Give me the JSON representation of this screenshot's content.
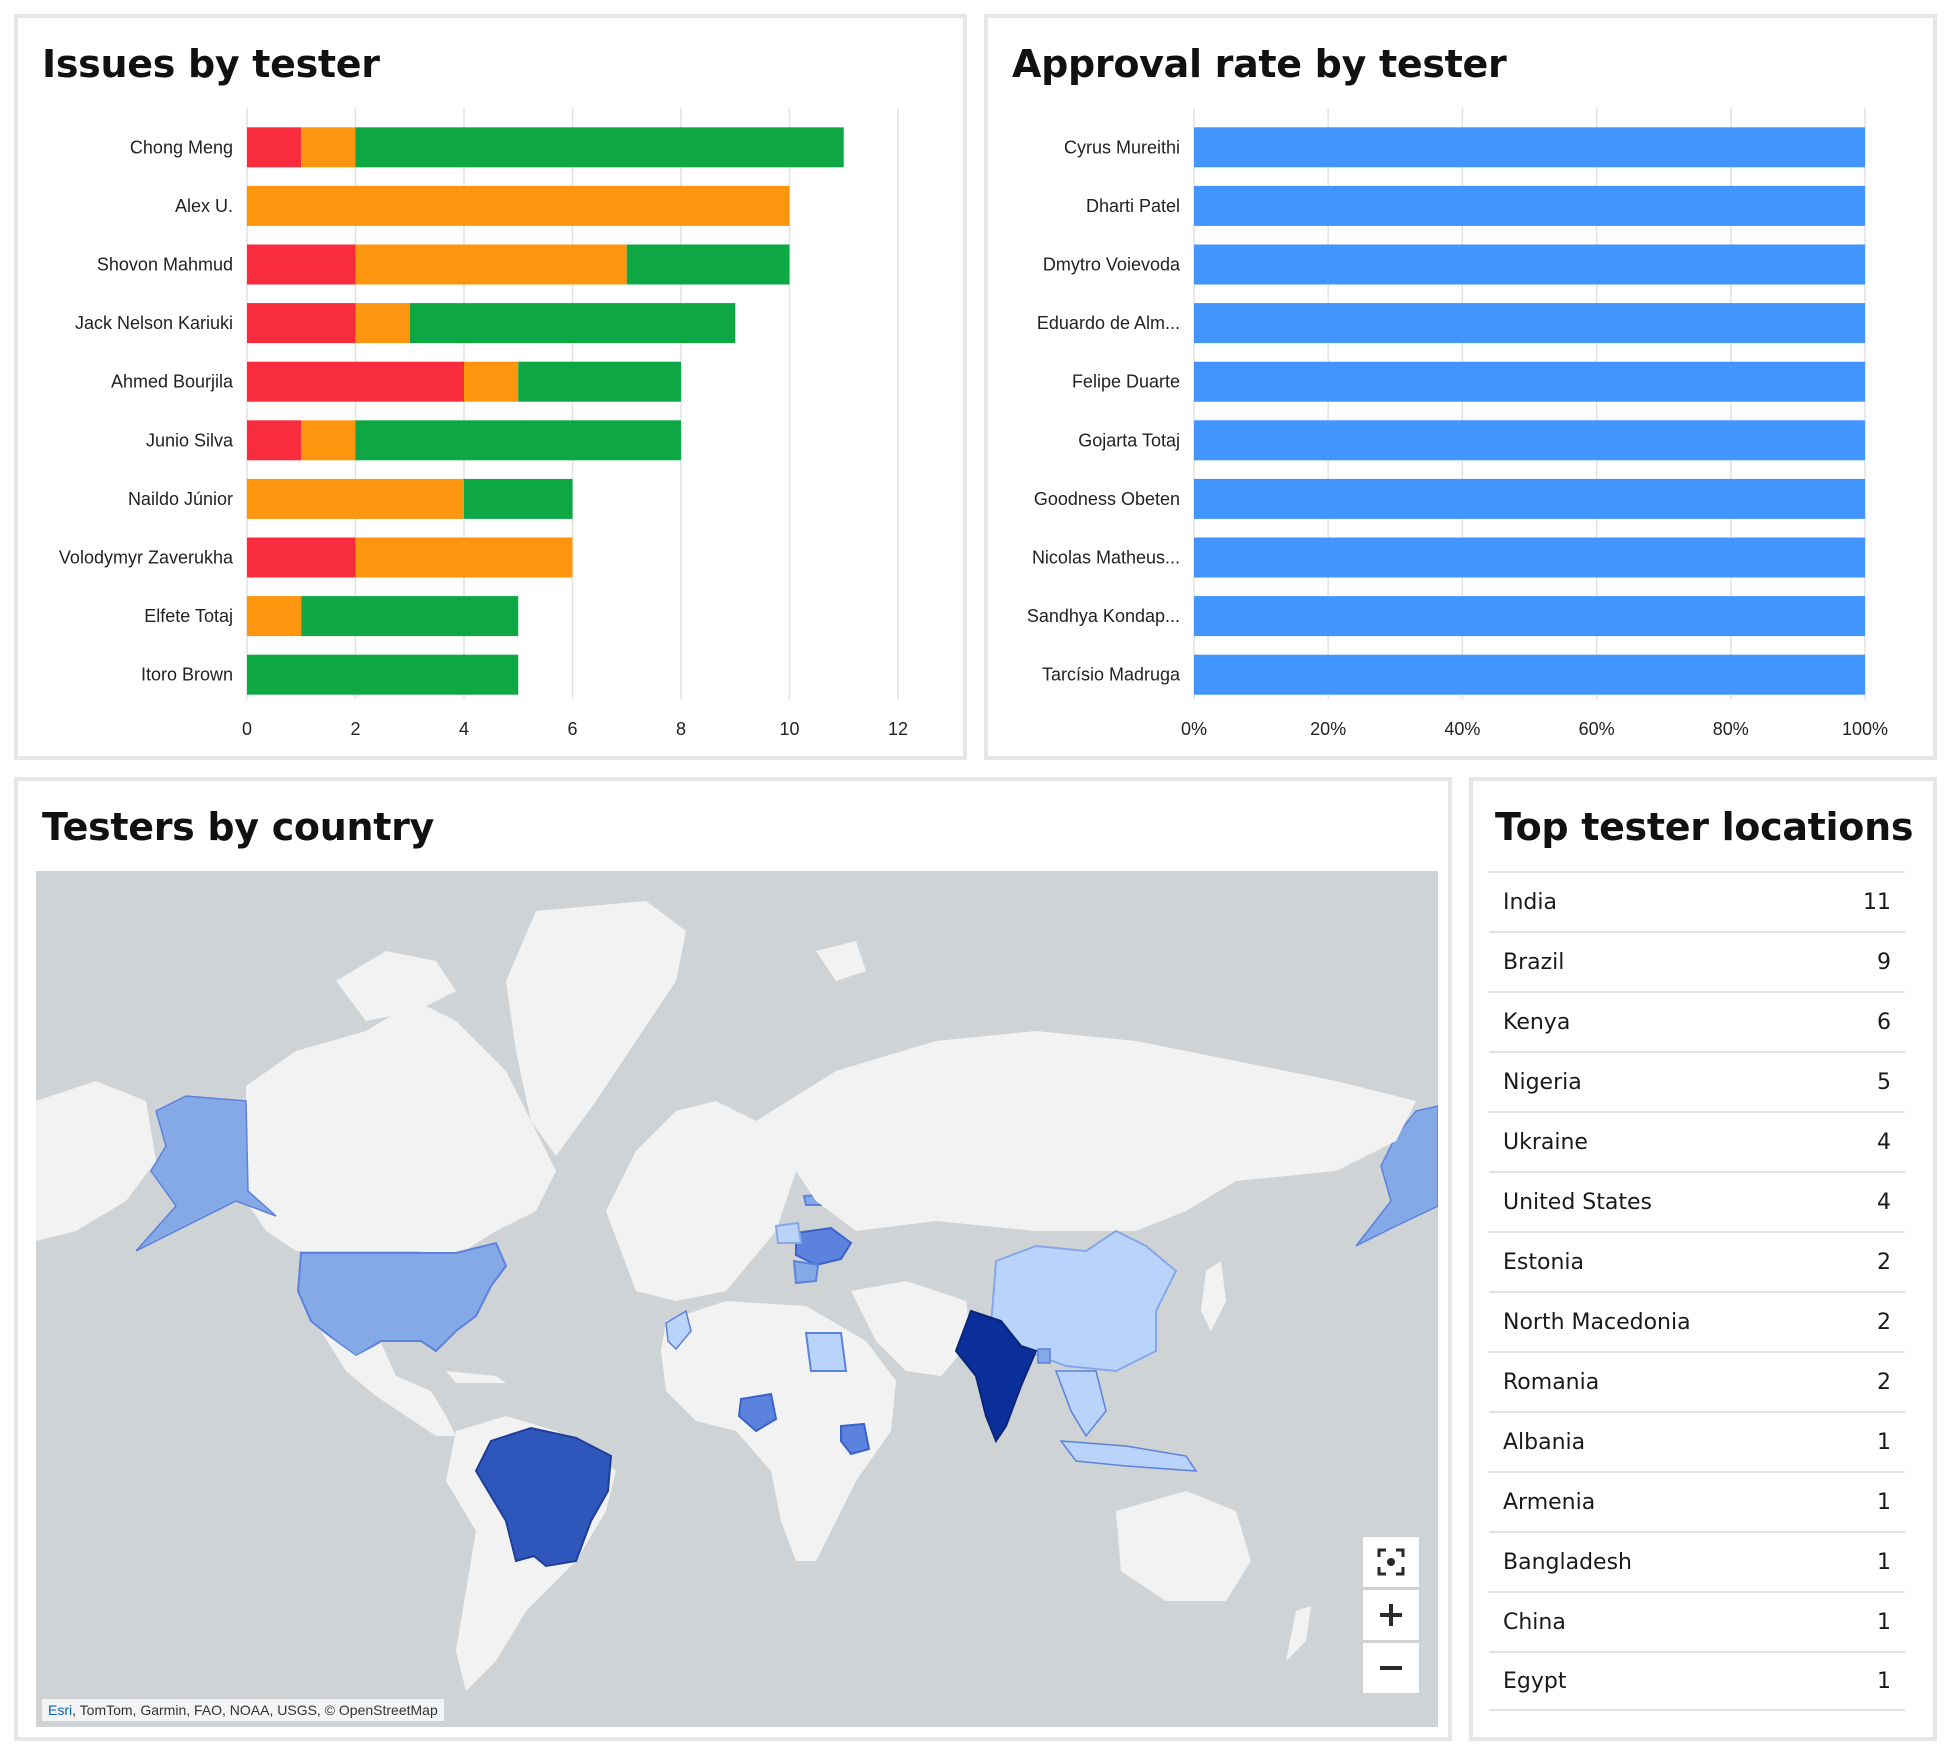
{
  "panels": {
    "issues": {
      "title": "Issues by tester"
    },
    "approval": {
      "title": "Approval rate by tester"
    },
    "map": {
      "title": "Testers by country",
      "attribution_link": "Esri",
      "attribution_rest": ", TomTom, Garmin, FAO, NOAA, USGS, © OpenStreetMap"
    },
    "locations": {
      "title": "Top tester locations"
    }
  },
  "map_controls": [
    {
      "name": "locate-button",
      "icon": "crosshair-icon"
    },
    {
      "name": "zoom-in-button",
      "icon": "plus-icon"
    },
    {
      "name": "zoom-out-button",
      "icon": "minus-icon"
    }
  ],
  "locations": [
    {
      "country": "India",
      "count": "11"
    },
    {
      "country": "Brazil",
      "count": "9"
    },
    {
      "country": "Kenya",
      "count": "6"
    },
    {
      "country": "Nigeria",
      "count": "5"
    },
    {
      "country": "Ukraine",
      "count": "4"
    },
    {
      "country": "United States",
      "count": "4"
    },
    {
      "country": "Estonia",
      "count": "2"
    },
    {
      "country": "North Macedonia",
      "count": "2"
    },
    {
      "country": "Romania",
      "count": "2"
    },
    {
      "country": "Albania",
      "count": "1"
    },
    {
      "country": "Armenia",
      "count": "1"
    },
    {
      "country": "Bangladesh",
      "count": "1"
    },
    {
      "country": "China",
      "count": "1"
    },
    {
      "country": "Egypt",
      "count": "1"
    }
  ],
  "colors": {
    "red": "#f92c3e",
    "orange": "#fd950f",
    "green": "#0da744",
    "blue": "#4195fd",
    "map_ocean": "#cfd3d6",
    "map_land": "#f2f2f2",
    "choropleth": [
      "#b9d3fb",
      "#85a8e6",
      "#5b82dc",
      "#2f56bb",
      "#0a2e9a"
    ]
  },
  "chart_data": [
    {
      "type": "bar",
      "orientation": "horizontal",
      "stacked": true,
      "categories": [
        "Chong Meng",
        "Alex U.",
        "Shovon Mahmud",
        "Jack Nelson Kariuki",
        "Ahmed Bourjila",
        "Junio Silva",
        "Naildo Júnior",
        "Volodymyr Zaverukha",
        "Elfete Totaj",
        "Itoro Brown"
      ],
      "series": [
        {
          "color": "#f92c3e",
          "values": [
            1,
            0,
            2,
            2,
            4,
            1,
            0,
            2,
            0,
            0
          ]
        },
        {
          "color": "#fd950f",
          "values": [
            1,
            10,
            5,
            1,
            1,
            1,
            4,
            4,
            1,
            0
          ]
        },
        {
          "color": "#0da744",
          "values": [
            9,
            0,
            3,
            6,
            3,
            6,
            2,
            0,
            4,
            5
          ]
        }
      ],
      "xlim": [
        0,
        12
      ],
      "xticks": [
        "0",
        "2",
        "4",
        "6",
        "8",
        "10",
        "12"
      ],
      "grid": true
    },
    {
      "type": "bar",
      "orientation": "horizontal",
      "categories": [
        "Cyrus Mureithi",
        "Dharti Patel",
        "Dmytro Voievoda",
        "Eduardo  de Alm...",
        "Felipe Duarte",
        "Gojarta Totaj",
        "Goodness Obeten",
        "Nicolas Matheus...",
        "Sandhya Kondap...",
        "Tarcísio Madruga"
      ],
      "series": [
        {
          "color": "#4195fd",
          "values": [
            1,
            1,
            1,
            1,
            1,
            1,
            1,
            1,
            1,
            1
          ]
        }
      ],
      "xlim": [
        0,
        1
      ],
      "xticks": [
        "0%",
        "20%",
        "40%",
        "60%",
        "80%",
        "100%"
      ],
      "grid": true
    }
  ]
}
